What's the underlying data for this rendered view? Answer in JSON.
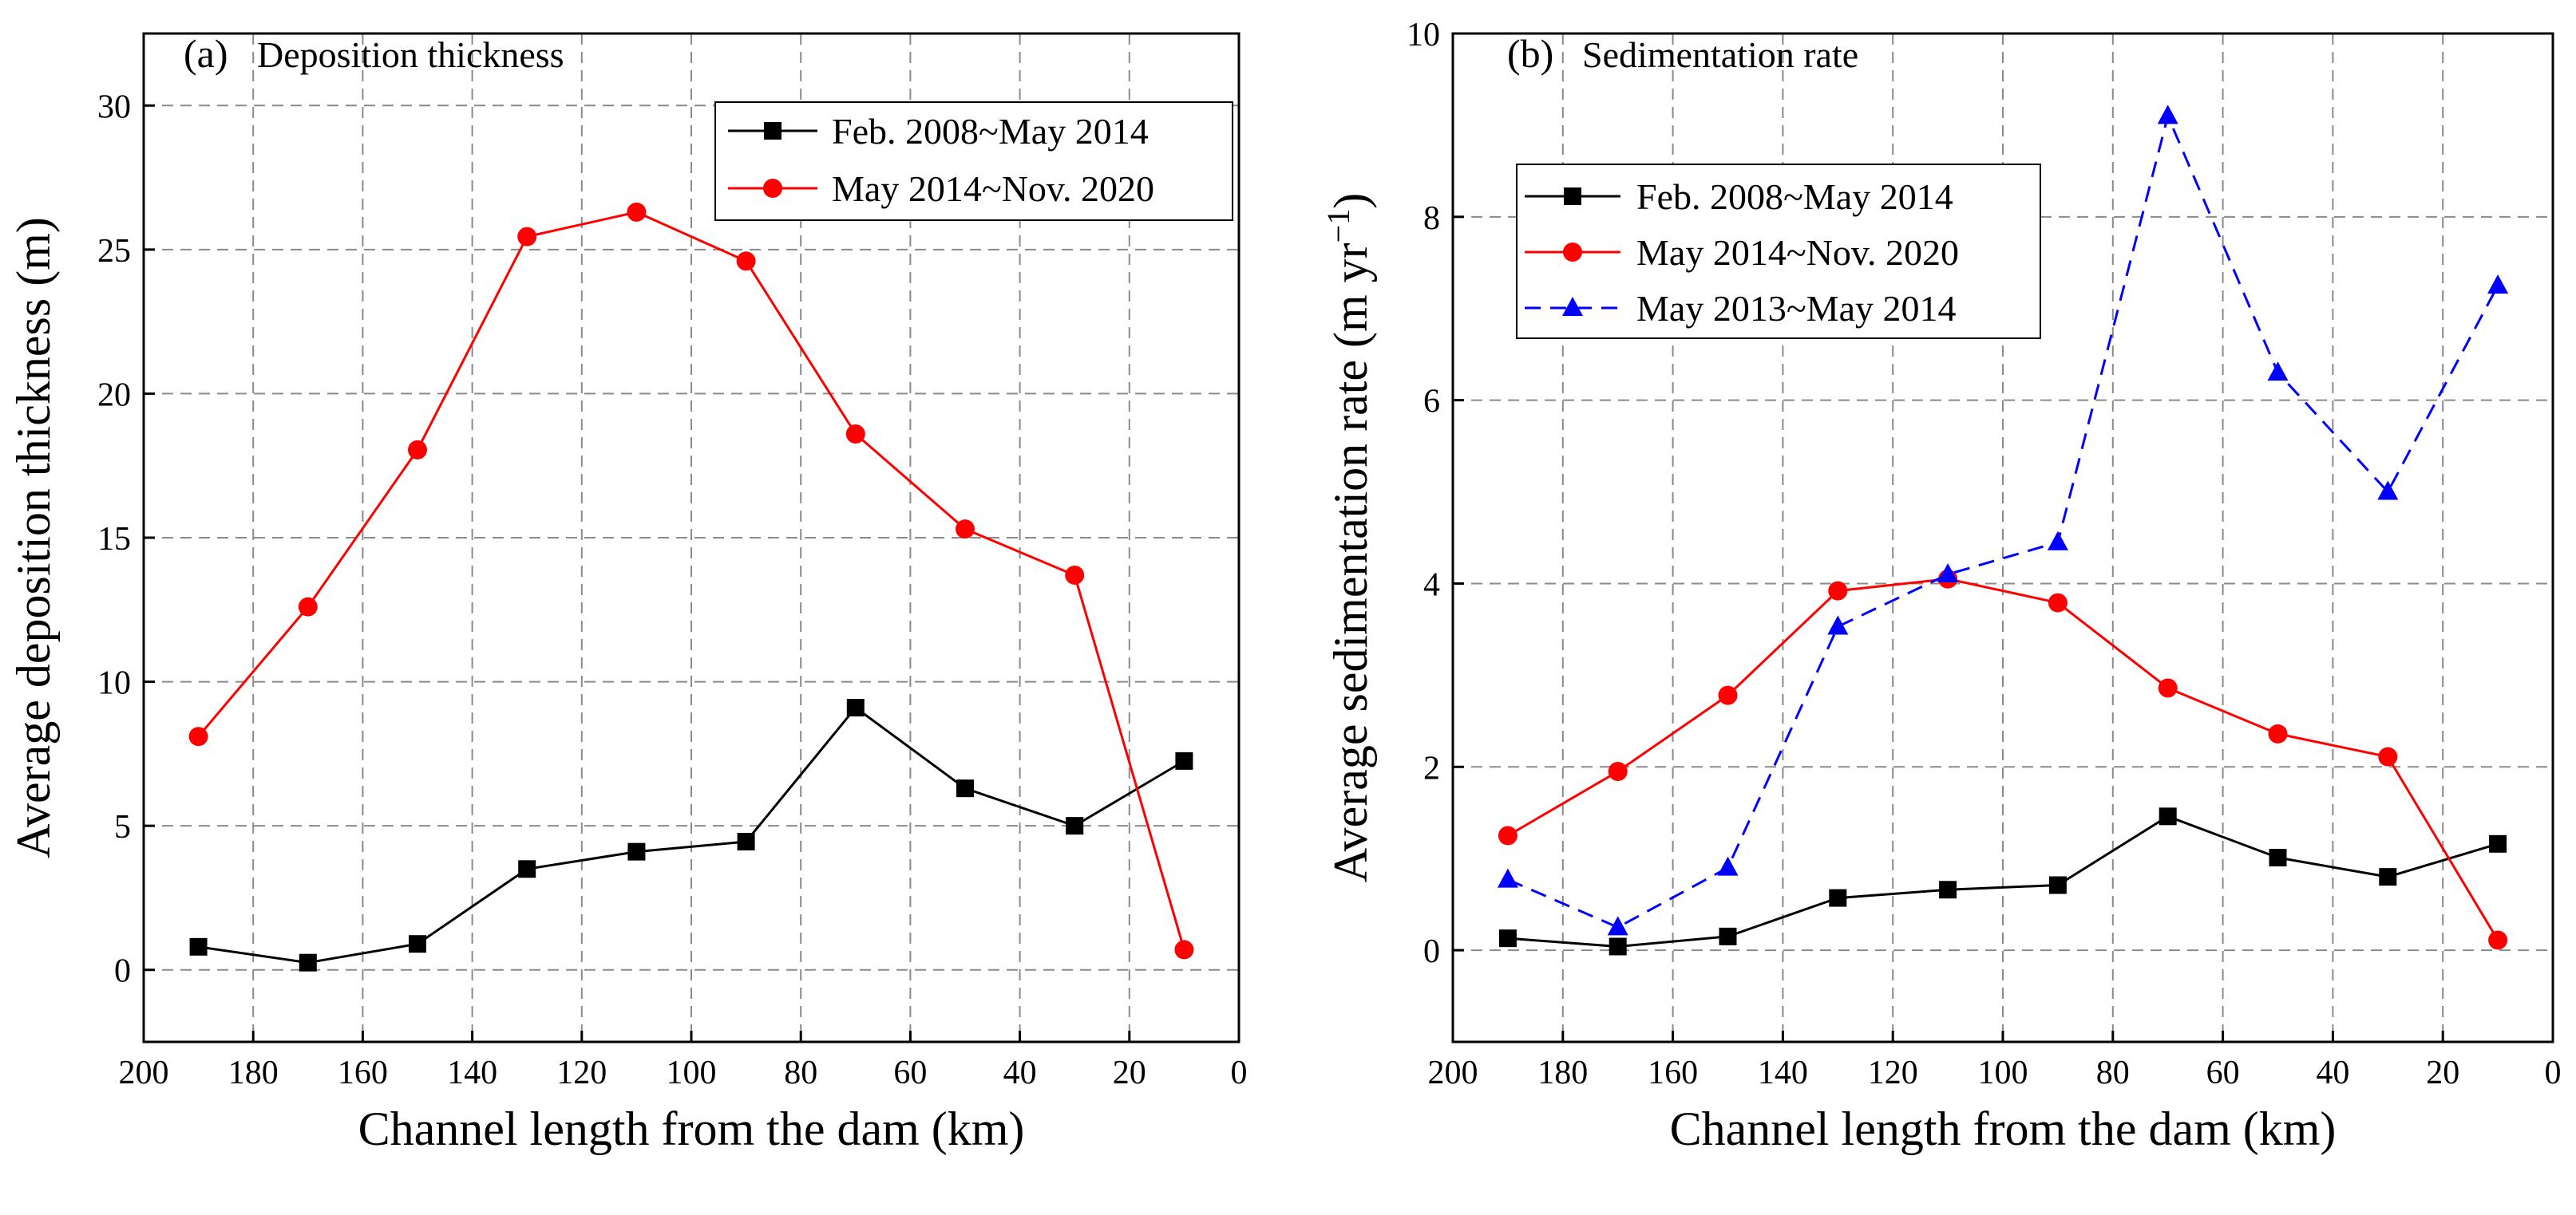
{
  "chart_data": [
    {
      "type": "line",
      "panel_label": "(a)",
      "title": "Deposition thickness",
      "xlabel": "Channel length from the dam (km)",
      "ylabel": "Average deposition thickness (m)",
      "xlim": [
        200,
        0
      ],
      "ylim": [
        -2.5,
        32.5
      ],
      "xticks": [
        200,
        180,
        160,
        140,
        120,
        100,
        80,
        60,
        40,
        20,
        0
      ],
      "yticks": [
        0,
        5,
        10,
        15,
        20,
        25,
        30
      ],
      "grid": true,
      "legend_position": "top-right",
      "x": [
        190,
        170,
        150,
        130,
        110,
        90,
        70,
        50,
        30,
        10
      ],
      "series": [
        {
          "name": "Feb. 2008~May 2014",
          "color": "#000000",
          "marker": "square",
          "line_style": "solid",
          "values": [
            0.8,
            0.25,
            0.9,
            3.5,
            4.1,
            4.45,
            9.1,
            6.3,
            5.0,
            7.25
          ]
        },
        {
          "name": "May 2014~Nov. 2020",
          "color": "#ff0000",
          "marker": "circle",
          "line_style": "solid",
          "values": [
            8.1,
            12.6,
            18.05,
            25.45,
            26.3,
            24.6,
            18.6,
            15.3,
            13.7,
            0.7
          ]
        }
      ]
    },
    {
      "type": "line",
      "panel_label": "(b)",
      "title": "Sedimentation rate",
      "xlabel": "Channel length from the dam (km)",
      "ylabel": "Average sedimentation rate (m yr",
      "ylabel_superscript": "−1",
      "ylabel_suffix": ")",
      "xlim": [
        200,
        0
      ],
      "ylim": [
        -1,
        10
      ],
      "xticks": [
        200,
        180,
        160,
        140,
        120,
        100,
        80,
        60,
        40,
        20,
        0
      ],
      "yticks": [
        0,
        2,
        4,
        6,
        8,
        10
      ],
      "grid": true,
      "legend_position": "top-left",
      "x": [
        190,
        170,
        150,
        130,
        110,
        90,
        70,
        50,
        30,
        10
      ],
      "series": [
        {
          "name": "Feb. 2008~May 2014",
          "color": "#000000",
          "marker": "square",
          "line_style": "solid",
          "values": [
            0.13,
            0.04,
            0.15,
            0.57,
            0.66,
            0.71,
            1.46,
            1.01,
            0.8,
            1.16
          ]
        },
        {
          "name": "May 2014~Nov. 2020",
          "color": "#ff0000",
          "marker": "circle",
          "line_style": "solid",
          "values": [
            1.25,
            1.95,
            2.78,
            3.92,
            4.05,
            3.79,
            2.86,
            2.36,
            2.11,
            0.11
          ]
        },
        {
          "name": "May 2013~May 2014",
          "color": "#0000ff",
          "marker": "triangle",
          "line_style": "dashed",
          "values": [
            0.77,
            0.25,
            0.9,
            3.53,
            4.1,
            4.45,
            9.1,
            6.3,
            5.0,
            7.25
          ]
        }
      ]
    }
  ]
}
